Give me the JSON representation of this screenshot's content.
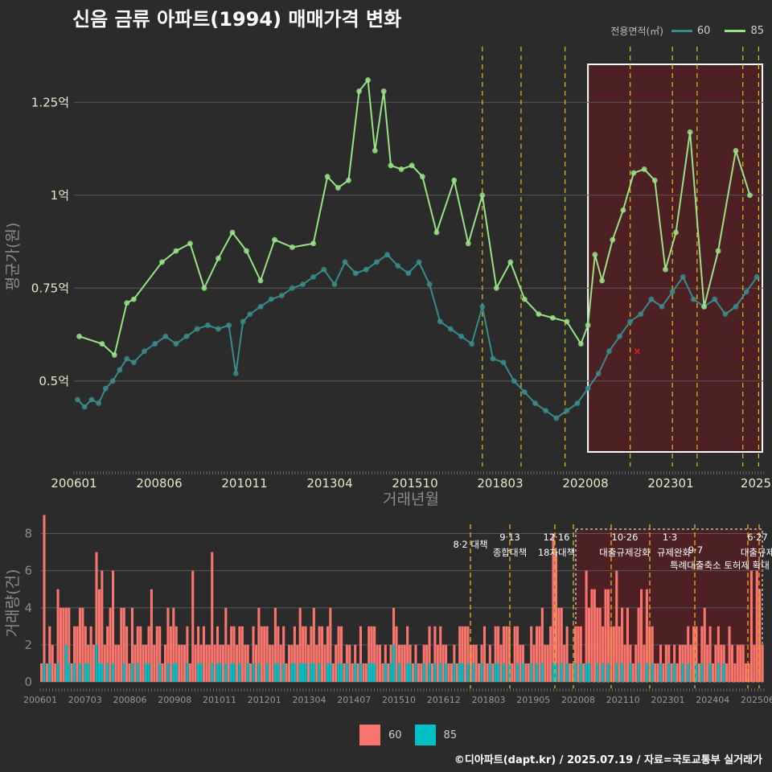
{
  "title": "신음 금류 아파트(1994) 매매가격 변화",
  "footer": "©디아파트(dapt.kr) / 2025.07.19 / 자료=국토교통부 실거래가",
  "legend": {
    "title": "전용면적(㎡)",
    "items": [
      {
        "name": "60",
        "line_color": "#3a8c8c",
        "bar_color": "#f8766d"
      },
      {
        "name": "85",
        "line_color": "#98e386",
        "bar_color": "#00bfc4"
      }
    ]
  },
  "chart_data": [
    {
      "type": "line",
      "title": "신음 금류 아파트(1994) 매매가격 변화",
      "xlabel": "거래년월",
      "ylabel": "평균가(원)",
      "x_tick_labels": [
        "200601",
        "200806",
        "201011",
        "201304",
        "201510",
        "201803",
        "202008",
        "202301",
        "2025"
      ],
      "y_tick_labels": [
        "0.5억",
        "0.75억",
        "1억",
        "1.25억"
      ],
      "y_ticks": [
        0.5,
        0.75,
        1.0,
        1.25
      ],
      "ylim": [
        0.27,
        1.4
      ],
      "xlim": [
        2006.0,
        2025.6
      ],
      "highlight_range": [
        2020.6,
        2025.6
      ],
      "policy_lines": [
        2017.6,
        2018.7,
        2019.95,
        2021.8,
        2023.0,
        2023.7,
        2025.0,
        2025.45
      ],
      "marker_x": {
        "x": 2022.0,
        "y": 0.58
      },
      "series": [
        {
          "name": "60",
          "color": "#3a8c8c",
          "x": [
            2006.1,
            2006.3,
            2006.5,
            2006.7,
            2006.9,
            2007.1,
            2007.3,
            2007.5,
            2007.7,
            2008.0,
            2008.3,
            2008.6,
            2008.9,
            2009.2,
            2009.5,
            2009.8,
            2010.1,
            2010.4,
            2010.6,
            2010.8,
            2011.0,
            2011.3,
            2011.6,
            2011.9,
            2012.2,
            2012.5,
            2012.8,
            2013.1,
            2013.4,
            2013.7,
            2014.0,
            2014.3,
            2014.6,
            2014.9,
            2015.2,
            2015.5,
            2015.8,
            2016.1,
            2016.4,
            2016.7,
            2017.0,
            2017.3,
            2017.6,
            2017.9,
            2018.2,
            2018.5,
            2018.8,
            2019.1,
            2019.4,
            2019.7,
            2020.0,
            2020.3,
            2020.6,
            2020.9,
            2021.2,
            2021.5,
            2021.8,
            2022.1,
            2022.4,
            2022.7,
            2023.0,
            2023.3,
            2023.6,
            2023.9,
            2024.2,
            2024.5,
            2024.8,
            2025.1,
            2025.4
          ],
          "y": [
            0.45,
            0.43,
            0.45,
            0.44,
            0.48,
            0.5,
            0.53,
            0.56,
            0.55,
            0.58,
            0.6,
            0.62,
            0.6,
            0.62,
            0.64,
            0.65,
            0.64,
            0.65,
            0.52,
            0.66,
            0.68,
            0.7,
            0.72,
            0.73,
            0.75,
            0.76,
            0.78,
            0.8,
            0.76,
            0.82,
            0.79,
            0.8,
            0.82,
            0.84,
            0.81,
            0.79,
            0.82,
            0.76,
            0.66,
            0.64,
            0.62,
            0.6,
            0.7,
            0.56,
            0.55,
            0.5,
            0.47,
            0.44,
            0.42,
            0.4,
            0.42,
            0.44,
            0.48,
            0.52,
            0.58,
            0.62,
            0.66,
            0.68,
            0.72,
            0.7,
            0.74,
            0.78,
            0.72,
            0.7,
            0.72,
            0.68,
            0.7,
            0.74,
            0.78
          ]
        },
        {
          "name": "85",
          "color": "#98e386",
          "x": [
            2006.15,
            2006.8,
            2007.15,
            2007.5,
            2007.7,
            2008.5,
            2008.9,
            2009.3,
            2009.7,
            2010.1,
            2010.5,
            2010.9,
            2011.3,
            2011.7,
            2012.2,
            2012.8,
            2013.2,
            2013.5,
            2013.8,
            2014.1,
            2014.35,
            2014.55,
            2014.8,
            2015.0,
            2015.3,
            2015.6,
            2015.9,
            2016.3,
            2016.8,
            2017.2,
            2017.6,
            2018.0,
            2018.4,
            2018.8,
            2019.2,
            2019.6,
            2020.0,
            2020.4,
            2020.6,
            2020.8,
            2021.0,
            2021.3,
            2021.6,
            2021.9,
            2022.2,
            2022.5,
            2022.8,
            2023.1,
            2023.5,
            2023.9,
            2024.3,
            2024.8,
            2025.2
          ],
          "y": [
            0.62,
            0.6,
            0.57,
            0.71,
            0.72,
            0.82,
            0.85,
            0.87,
            0.75,
            0.83,
            0.9,
            0.85,
            0.77,
            0.88,
            0.86,
            0.87,
            1.05,
            1.02,
            1.04,
            1.28,
            1.31,
            1.12,
            1.28,
            1.08,
            1.07,
            1.08,
            1.05,
            0.9,
            1.04,
            0.87,
            1.0,
            0.75,
            0.82,
            0.72,
            0.68,
            0.67,
            0.66,
            0.6,
            0.65,
            0.84,
            0.77,
            0.88,
            0.96,
            1.06,
            1.07,
            1.04,
            0.8,
            0.9,
            1.17,
            0.7,
            0.85,
            1.12,
            1.0
          ]
        }
      ]
    },
    {
      "type": "bar",
      "ylabel": "거래량(건)",
      "y_tick_labels": [
        "0",
        "2",
        "4",
        "6",
        "8"
      ],
      "ylim": [
        0,
        8.5
      ],
      "x_tick_labels": [
        "200601",
        "200703",
        "200806",
        "200908",
        "201011",
        "201201",
        "201304",
        "201407",
        "201510",
        "201612",
        "201803",
        "201905",
        "202008",
        "202110",
        "202301",
        "202404",
        "202506"
      ],
      "annotations": [
        {
          "label": "8·2 대책",
          "sub": ""
        },
        {
          "label": "9·13",
          "sub": "종합대책"
        },
        {
          "label": "12·16",
          "sub": "18차대책"
        },
        {
          "label": "10·26",
          "sub": "대출규제강화"
        },
        {
          "label": "1·3",
          "sub": "규제완화"
        },
        {
          "label": "9·7",
          "sub": "특례대출축소 토허제 확대"
        },
        {
          "label": "6·27",
          "sub": "대출규제"
        }
      ],
      "series": [
        {
          "name": "60",
          "color": "#f8766d",
          "values": [
            1,
            8,
            1,
            2,
            2,
            1,
            4,
            4,
            4,
            2,
            3,
            1,
            2,
            3,
            3,
            4,
            2,
            1,
            3,
            2,
            5,
            4,
            5,
            2,
            2,
            4,
            5,
            2,
            2,
            4,
            3,
            3,
            1,
            3,
            2,
            2,
            3,
            2,
            1,
            2,
            5,
            2,
            3,
            2,
            1,
            2,
            3,
            3,
            3,
            2,
            2,
            2,
            2,
            2,
            1,
            6,
            2,
            2,
            1,
            3,
            2,
            2,
            6,
            2,
            2,
            1,
            2,
            3,
            2,
            2,
            2,
            2,
            2,
            3,
            2,
            1,
            1,
            2,
            2,
            3,
            3,
            3,
            2,
            2,
            2,
            3,
            2,
            2,
            2,
            1,
            2,
            1,
            2,
            2,
            3,
            2,
            2,
            2,
            2,
            3,
            2,
            2,
            3,
            2,
            2,
            3,
            1,
            2,
            2,
            2,
            1,
            1,
            2,
            1,
            1,
            1,
            2,
            1,
            1,
            2,
            2,
            2,
            2,
            2,
            1,
            1,
            1,
            1,
            2,
            3,
            1,
            2,
            2,
            2,
            1,
            1,
            1,
            1,
            1,
            1,
            2,
            2,
            1,
            2,
            2,
            2,
            2,
            1,
            1,
            1,
            1,
            1,
            2,
            2,
            3,
            2,
            2,
            1,
            2,
            1,
            1,
            3,
            1,
            1,
            1,
            2,
            2,
            2,
            2,
            3,
            2,
            1,
            3,
            2,
            2,
            1,
            1,
            1,
            2,
            2,
            2,
            3,
            3,
            2,
            2,
            3,
            7,
            6,
            4,
            3,
            2,
            2,
            1,
            1,
            2,
            3,
            2,
            1,
            5,
            3,
            5,
            5,
            3,
            4,
            2,
            5,
            4,
            3,
            3,
            5,
            3,
            3,
            2,
            4,
            1,
            1,
            2,
            3,
            5,
            2,
            4,
            3,
            2,
            1,
            1,
            1,
            1,
            2,
            1,
            1,
            1,
            1,
            2,
            1,
            2,
            2,
            2,
            3,
            2,
            1,
            2,
            4,
            2,
            2,
            1,
            2,
            2,
            2,
            1,
            1,
            3,
            2,
            1,
            2,
            2,
            2,
            1,
            1,
            6,
            2,
            6,
            5,
            2
          ]
        },
        {
          "name": "85",
          "color": "#00bfc4",
          "values": [
            0,
            1,
            0,
            1,
            0,
            0,
            1,
            0,
            0,
            2,
            1,
            0,
            1,
            0,
            1,
            0,
            1,
            1,
            0,
            0,
            2,
            1,
            1,
            0,
            1,
            0,
            1,
            0,
            0,
            0,
            1,
            0,
            0,
            1,
            0,
            1,
            0,
            0,
            1,
            1,
            0,
            0,
            0,
            1,
            0,
            0,
            1,
            0,
            1,
            1,
            0,
            0,
            0,
            1,
            0,
            0,
            0,
            1,
            1,
            0,
            0,
            0,
            1,
            0,
            1,
            1,
            0,
            1,
            0,
            1,
            1,
            0,
            1,
            0,
            0,
            1,
            0,
            1,
            0,
            1,
            0,
            0,
            1,
            0,
            0,
            1,
            1,
            0,
            1,
            0,
            0,
            1,
            1,
            0,
            1,
            1,
            1,
            0,
            1,
            1,
            0,
            1,
            0,
            0,
            1,
            1,
            0,
            0,
            1,
            1,
            0,
            1,
            0,
            0,
            1,
            0,
            1,
            0,
            0,
            1,
            1,
            1,
            0,
            0,
            0,
            1,
            0,
            1,
            2,
            0,
            1,
            0,
            0,
            1,
            1,
            0,
            1,
            0,
            0,
            1,
            0,
            1,
            0,
            1,
            0,
            1,
            0,
            1,
            0,
            0,
            1,
            0,
            1,
            1,
            0,
            1,
            0,
            1,
            0,
            0,
            1,
            0,
            0,
            1,
            0,
            1,
            1,
            0,
            1,
            0,
            1,
            0,
            0,
            1,
            0,
            1,
            0,
            0,
            1,
            0,
            1,
            0,
            1,
            0,
            0,
            0,
            1,
            1,
            0,
            1,
            0,
            1,
            0,
            0,
            1,
            0,
            1,
            0,
            1,
            1,
            0,
            0,
            1,
            0,
            1,
            0,
            1,
            0,
            0,
            1,
            0,
            1,
            0,
            0,
            1,
            0,
            0,
            1,
            0,
            0,
            1,
            0,
            1,
            0,
            0,
            1,
            0,
            0,
            1,
            0,
            1,
            0,
            0,
            1,
            0,
            1,
            0,
            0,
            1,
            0,
            1,
            0,
            0,
            1,
            0,
            0,
            1,
            0,
            1
          ]
        }
      ]
    }
  ]
}
